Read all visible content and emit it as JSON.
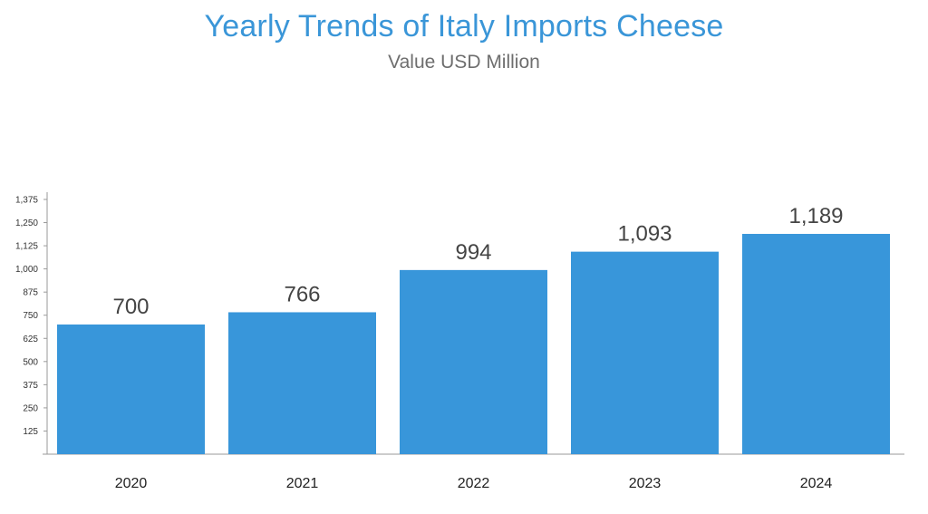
{
  "chart_data": {
    "type": "bar",
    "title": "Yearly Trends of Italy Imports Cheese",
    "subtitle": "Value USD Million",
    "xlabel": "",
    "ylabel": "",
    "categories": [
      "2020",
      "2021",
      "2022",
      "2023",
      "2024"
    ],
    "values": [
      700,
      766,
      994,
      1093,
      1189
    ],
    "value_labels": [
      "700",
      "766",
      "994",
      "1,093",
      "1,189"
    ],
    "ylim": [
      0,
      1375
    ],
    "yticks": [
      125,
      250,
      375,
      500,
      625,
      750,
      875,
      1000,
      1125,
      1250,
      1375
    ],
    "ytick_labels": [
      "125",
      "250",
      "375",
      "500",
      "625",
      "750",
      "875",
      "1,000",
      "1,125",
      "1,250",
      "1,375"
    ],
    "grid": false,
    "legend": "none",
    "bar_color": "#3896da"
  }
}
